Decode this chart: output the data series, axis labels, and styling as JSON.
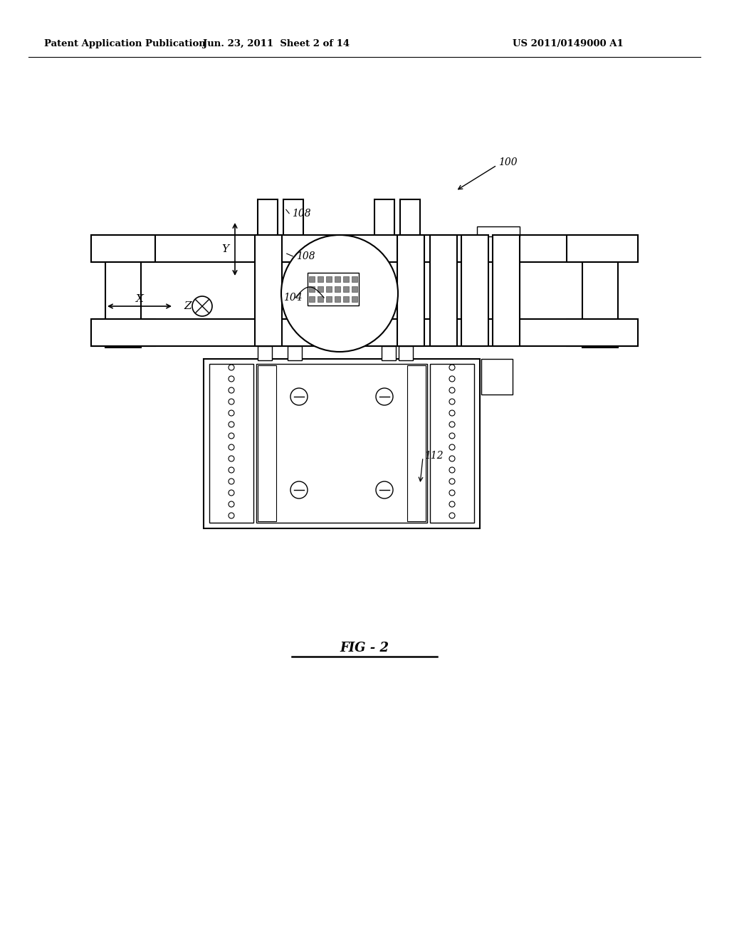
{
  "bg_color": "#ffffff",
  "line_color": "#000000",
  "header_text": "Patent Application Publication",
  "header_date": "Jun. 23, 2011  Sheet 2 of 14",
  "header_patent": "US 2011/0149000 A1",
  "fig_label": "FIG - 2"
}
